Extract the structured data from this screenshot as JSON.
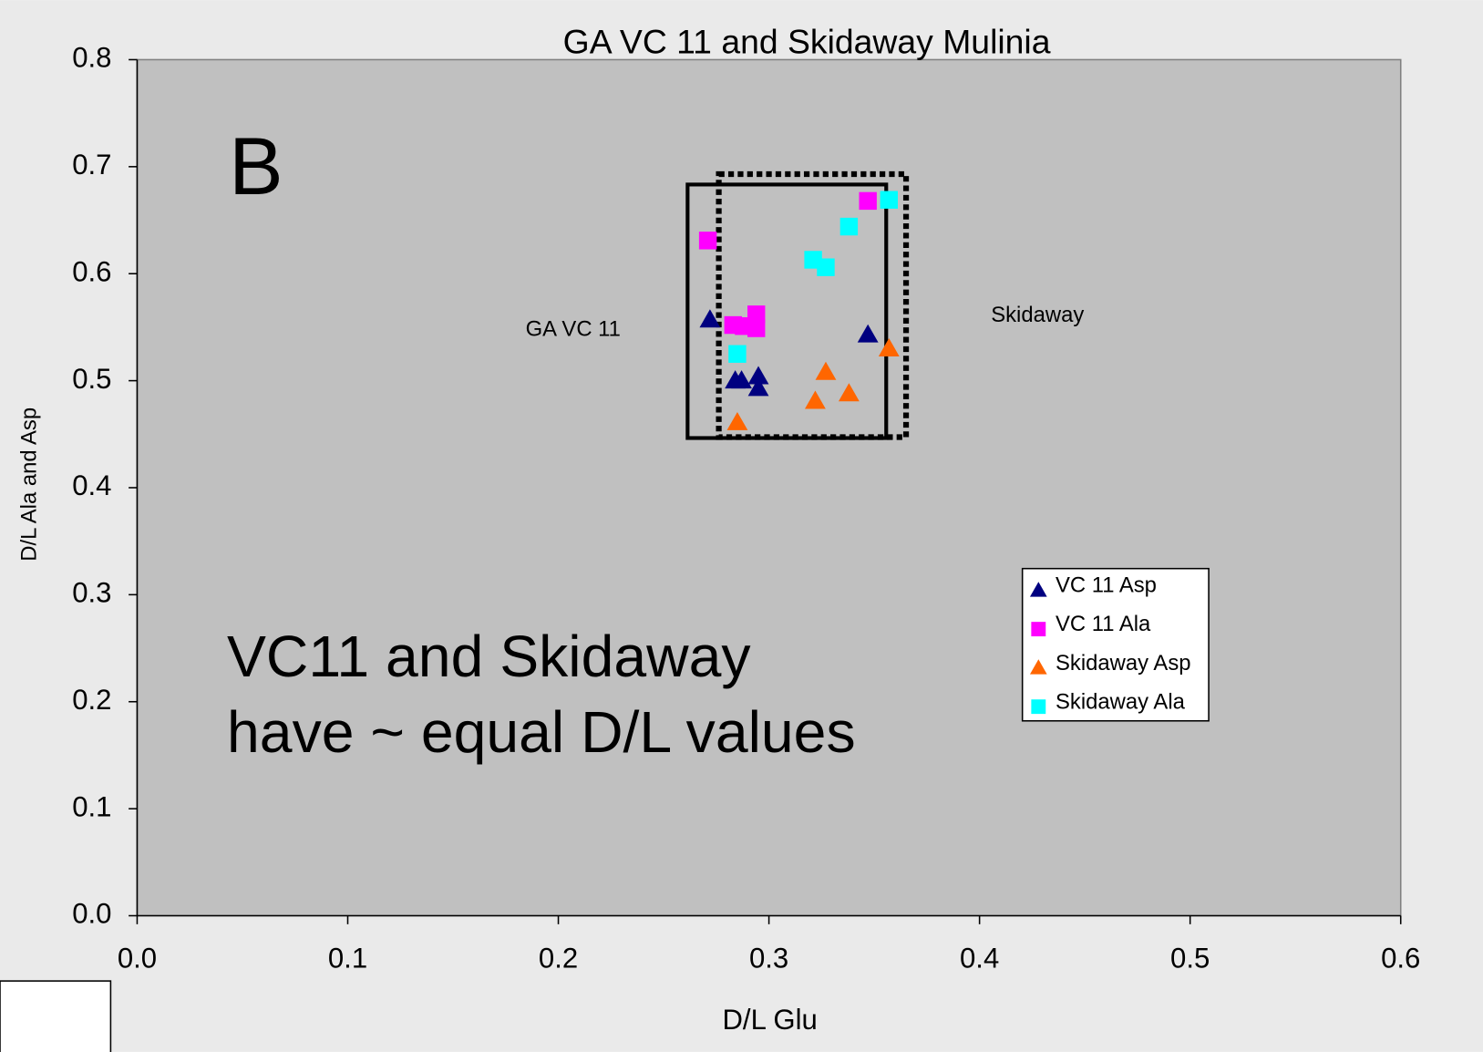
{
  "chart_data": {
    "type": "scatter",
    "title": "GA VC 11 and Skidaway Mulinia",
    "x_label": "D/L Glu",
    "y_label": "D/L Ala and Asp",
    "annotations": [
      "B",
      "GA VC 11",
      "Skidaway",
      "VC11 and Skidaway",
      "have ~ equal D/L values"
    ],
    "xlim": [
      0,
      0.6
    ],
    "ylim": [
      0,
      0.8
    ],
    "xticks": [
      {
        "value": 0,
        "label": "0.0"
      },
      0.1,
      0.2,
      0.3,
      0.4,
      0.5,
      0.6
    ],
    "yticks": [
      {
        "value": 0,
        "label": "0.0"
      },
      0.1,
      0.2,
      0.3,
      0.4,
      0.5,
      0.6,
      0.7,
      0.8
    ],
    "grid": false,
    "legend": "right",
    "series": [
      {
        "name": "VC 11 Asp",
        "color": "#000080",
        "marker": "triangle",
        "x": [
          0.272,
          0.284,
          0.287,
          0.295,
          0.295,
          0.347
        ],
        "values": [
          0.557,
          0.5,
          0.5,
          0.504,
          0.493,
          0.543
        ]
      },
      {
        "name": "VC 11 Ala",
        "color": "#ff00ff",
        "marker": "square",
        "x": [
          0.271,
          0.283,
          0.288,
          0.294,
          0.294,
          0.347
        ],
        "values": [
          0.631,
          0.552,
          0.551,
          0.562,
          0.549,
          0.668
        ]
      },
      {
        "name": "Skidaway Asp",
        "color": "#ff6600",
        "marker": "triangle",
        "x": [
          0.285,
          0.322,
          0.327,
          0.338,
          0.357
        ],
        "values": [
          0.461,
          0.481,
          0.508,
          0.488,
          0.53
        ]
      },
      {
        "name": "Skidaway Ala",
        "color": "#00ffff",
        "marker": "square",
        "x": [
          0.285,
          0.321,
          0.327,
          0.338,
          0.357
        ],
        "values": [
          0.525,
          0.613,
          0.606,
          0.644,
          0.669
        ]
      }
    ]
  }
}
